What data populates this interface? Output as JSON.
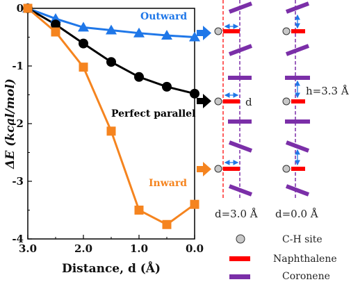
{
  "chart_data": {
    "type": "line",
    "xlabel": "Distance, d (Å)",
    "ylabel": "ΔE (kcal/mol)",
    "xlim": [
      3.0,
      0.0
    ],
    "ylim": [
      -4,
      0
    ],
    "x_ticks": [
      "3.0",
      "2.0",
      "1.0",
      "0.0"
    ],
    "y_ticks": [
      "0",
      "-1",
      "-2",
      "-3",
      "-4"
    ],
    "grid": false,
    "series": [
      {
        "name": "Outward",
        "color": "#1f77e8",
        "marker": "triangle",
        "x": [
          3.0,
          2.5,
          2.0,
          1.5,
          1.0,
          0.5,
          0.0
        ],
        "y": [
          0.0,
          -0.18,
          -0.33,
          -0.38,
          -0.43,
          -0.47,
          -0.5
        ]
      },
      {
        "name": "Perfect parallel",
        "color": "#000000",
        "marker": "circle",
        "x": [
          3.0,
          2.5,
          2.0,
          1.5,
          1.0,
          0.5,
          0.0
        ],
        "y": [
          0.0,
          -0.28,
          -0.61,
          -0.93,
          -1.19,
          -1.36,
          -1.48
        ]
      },
      {
        "name": "Inward",
        "color": "#f5841f",
        "marker": "square",
        "x": [
          3.0,
          2.5,
          2.0,
          1.5,
          1.0,
          0.5,
          0.0
        ],
        "y": [
          0.0,
          -0.41,
          -1.02,
          -2.13,
          -3.5,
          -3.75,
          -3.4
        ]
      }
    ]
  },
  "schematic": {
    "label_d": "d",
    "label_h": "h=3.3 Å",
    "col1_caption": "d=3.0 Å",
    "col2_caption": "d=0.0 Å",
    "colors": {
      "naphthalene": "#ff0000",
      "coronene": "#7b2fa8",
      "ch_site": "#c8c8c8",
      "arrow_outward": "#1f77e8",
      "arrow_parallel": "#000000",
      "arrow_inward": "#f5841f"
    }
  },
  "legend": {
    "items": [
      {
        "icon": "ch-site-icon",
        "label": "C-H site"
      },
      {
        "icon": "naphthalene-icon",
        "label": "Naphthalene"
      },
      {
        "icon": "coronene-icon",
        "label": "Coronene"
      }
    ]
  }
}
